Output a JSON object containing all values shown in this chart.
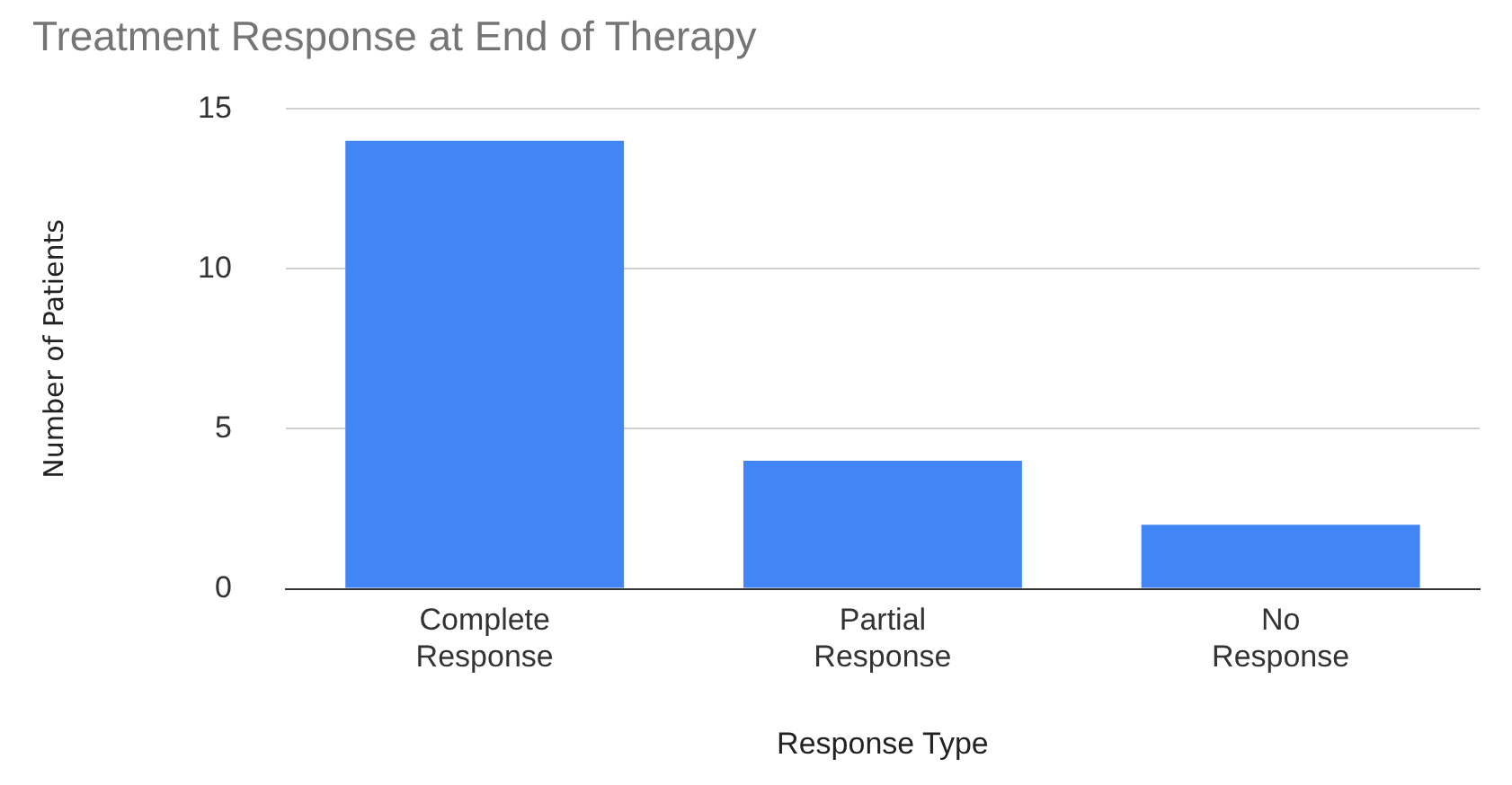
{
  "chart_data": {
    "type": "bar",
    "title": "Treatment Response at End of Therapy",
    "xlabel": "Response Type",
    "ylabel": "Number of Patients",
    "categories": [
      "Complete Response",
      "Partial Response",
      "No Response"
    ],
    "values": [
      14,
      4,
      2
    ],
    "color": "#4285f4",
    "ylim": [
      0,
      15
    ],
    "yticks": [
      0,
      5,
      10,
      15
    ],
    "grid": "y"
  }
}
